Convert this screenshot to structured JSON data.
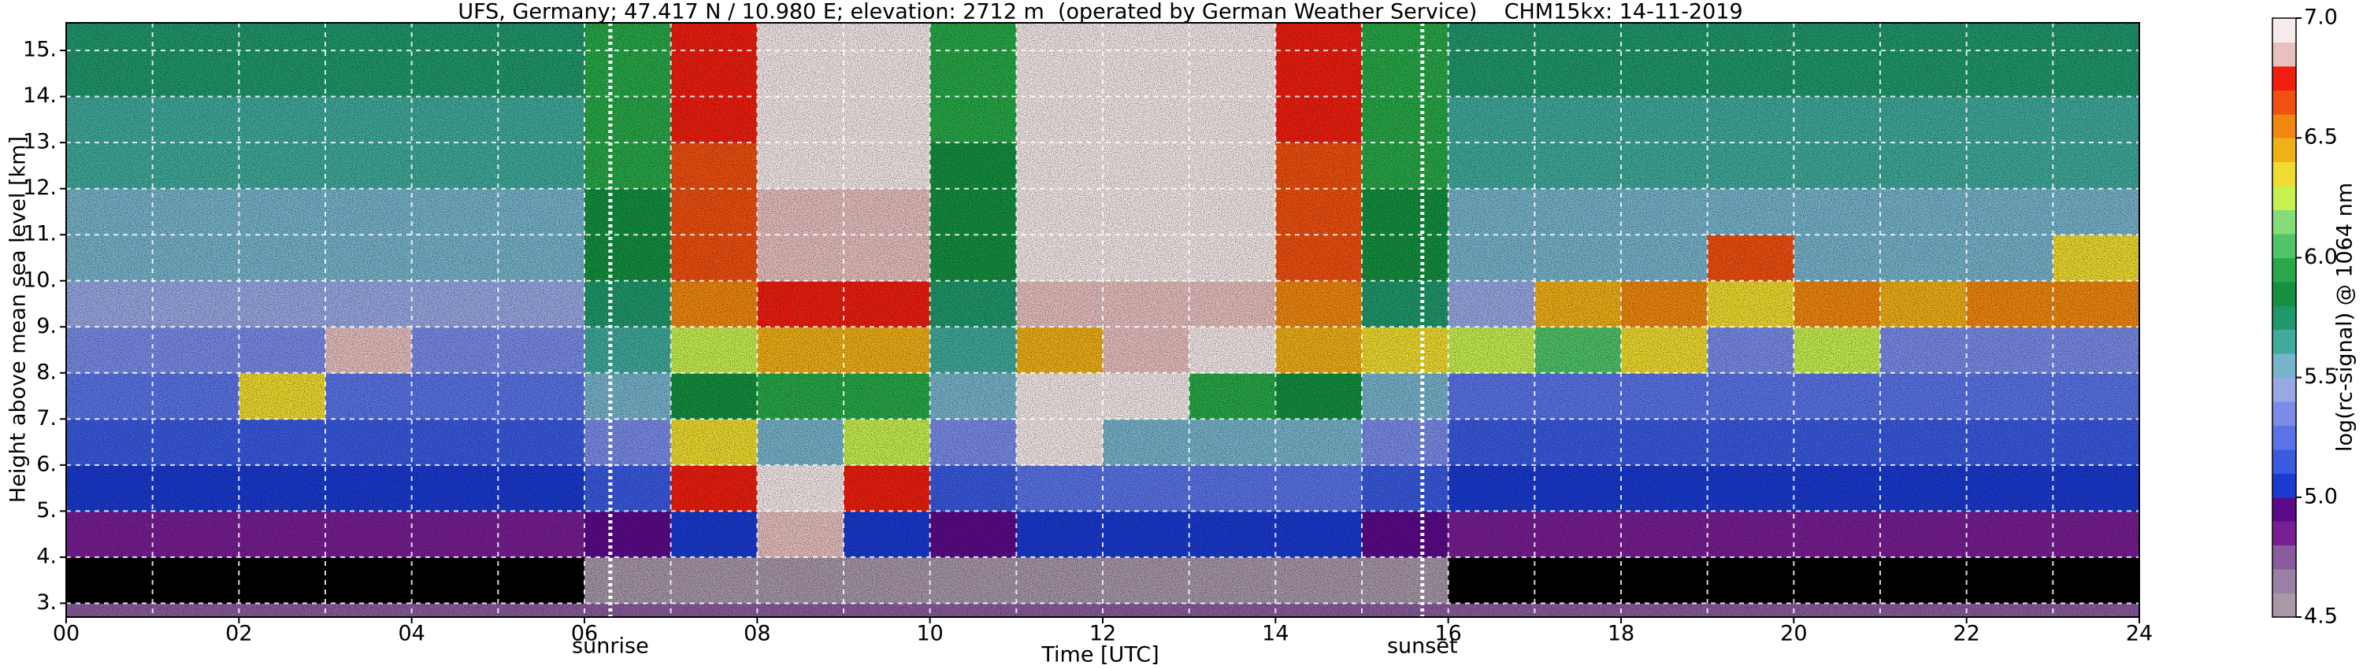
{
  "chart_data": {
    "type": "heatmap",
    "title": "UFS, Germany; 47.417 N / 10.980 E; elevation: 2712 m  (operated by German Weather Service)    CHM15kx: 14-11-2019",
    "x_label": "Time [UTC]",
    "y_label": "Height above mean sea level [km]",
    "colorbar_label": "log(rc-signal) @ 1064 nm",
    "xlim": [
      0,
      24
    ],
    "ylim": [
      2.7,
      15.6
    ],
    "xticks": [
      {
        "value": 0,
        "label": "00"
      },
      {
        "value": 2,
        "label": "02"
      },
      {
        "value": 4,
        "label": "04"
      },
      {
        "value": 6,
        "label": "06"
      },
      {
        "value": 8,
        "label": "08"
      },
      10,
      12,
      14,
      16,
      18,
      20,
      22,
      24
    ],
    "yticks": [
      {
        "value": 3,
        "label": "3."
      },
      {
        "value": 4,
        "label": "4."
      },
      {
        "value": 5,
        "label": "5."
      },
      {
        "value": 6,
        "label": "6."
      },
      {
        "value": 7,
        "label": "7."
      },
      {
        "value": 8,
        "label": "8."
      },
      {
        "value": 9,
        "label": "9."
      },
      {
        "value": 10,
        "label": "10."
      },
      {
        "value": 11,
        "label": "11."
      },
      {
        "value": 12,
        "label": "12."
      },
      {
        "value": 13,
        "label": "13."
      },
      {
        "value": 14,
        "label": "14."
      },
      {
        "value": 15,
        "label": "15."
      }
    ],
    "clim": [
      4.5,
      7.0
    ],
    "cticks": [
      4.5,
      {
        "value": 5.0,
        "label": "5.0"
      },
      5.5,
      {
        "value": 6.0,
        "label": "6.0"
      },
      6.5,
      {
        "value": 7.0,
        "label": "7.0"
      }
    ],
    "colormap": [
      "#a898a8",
      "#9a80a4",
      "#8a5c9e",
      "#781e94",
      "#5c0a8a",
      "#1a3ad0",
      "#3a5ae0",
      "#5a74e8",
      "#7a8ce8",
      "#98a8e4",
      "#78b4cc",
      "#40aa9c",
      "#20986c",
      "#149040",
      "#28a848",
      "#50c468",
      "#88dc78",
      "#c8f050",
      "#f0dc30",
      "#f0b018",
      "#f08810",
      "#f05010",
      "#f01e10",
      "#e8c0c0",
      "#f6eaea"
    ],
    "under_color": "#000000",
    "grid": true,
    "x_edges": [
      0,
      1,
      2,
      3,
      4,
      5,
      6,
      7,
      8,
      9,
      10,
      11,
      12,
      13,
      14,
      15,
      16,
      17,
      18,
      19,
      20,
      21,
      22,
      23,
      24
    ],
    "y_edges": [
      2.7,
      3,
      4,
      5,
      6,
      7,
      8,
      9,
      10,
      11,
      12,
      13,
      14,
      15,
      15.6
    ],
    "z": [
      [
        4.7,
        4.7,
        4.7,
        4.7,
        4.7,
        4.7,
        4.7,
        4.7,
        4.7,
        4.7,
        4.7,
        4.7,
        4.7,
        4.7,
        4.7,
        4.7,
        4.7,
        4.7,
        4.7,
        4.7,
        4.7,
        4.7,
        4.7,
        4.7
      ],
      [
        4.4,
        4.4,
        4.4,
        4.4,
        4.4,
        4.4,
        4.5,
        4.5,
        4.5,
        4.5,
        4.5,
        4.5,
        4.5,
        4.5,
        4.5,
        4.5,
        4.4,
        4.4,
        4.4,
        4.4,
        4.4,
        4.4,
        4.4,
        4.4
      ],
      [
        4.8,
        4.8,
        4.8,
        4.8,
        4.8,
        4.8,
        4.9,
        5.0,
        6.8,
        5.0,
        4.9,
        5.0,
        5.0,
        5.0,
        5.0,
        4.9,
        4.8,
        4.8,
        4.8,
        4.8,
        4.8,
        4.8,
        4.8,
        4.8
      ],
      [
        5.0,
        5.0,
        5.0,
        5.0,
        5.0,
        5.0,
        5.1,
        6.7,
        6.9,
        6.7,
        5.1,
        5.2,
        5.2,
        5.2,
        5.2,
        5.1,
        5.0,
        5.0,
        5.0,
        5.0,
        5.0,
        5.0,
        5.0,
        5.0
      ],
      [
        5.1,
        5.1,
        5.1,
        5.1,
        5.1,
        5.1,
        5.3,
        6.3,
        5.5,
        6.2,
        5.3,
        6.9,
        5.5,
        5.5,
        5.5,
        5.3,
        5.1,
        5.1,
        5.1,
        5.1,
        5.1,
        5.1,
        5.1,
        5.1
      ],
      [
        5.2,
        5.2,
        6.3,
        5.2,
        5.2,
        5.2,
        5.5,
        5.8,
        5.9,
        5.9,
        5.5,
        6.9,
        6.9,
        5.9,
        5.8,
        5.5,
        5.2,
        5.2,
        5.2,
        5.2,
        5.2,
        5.2,
        5.2,
        5.2
      ],
      [
        5.3,
        5.3,
        5.3,
        6.8,
        5.3,
        5.3,
        5.6,
        6.2,
        6.4,
        6.4,
        5.6,
        6.4,
        6.8,
        6.9,
        6.4,
        6.3,
        6.2,
        6.0,
        6.3,
        5.3,
        6.2,
        5.3,
        5.3,
        5.3
      ],
      [
        5.4,
        5.4,
        5.4,
        5.4,
        5.4,
        5.4,
        5.7,
        6.5,
        6.7,
        6.7,
        5.7,
        6.8,
        6.8,
        6.8,
        6.5,
        5.7,
        5.4,
        6.4,
        6.5,
        6.3,
        6.5,
        6.4,
        6.5,
        6.5
      ],
      [
        5.5,
        5.5,
        5.5,
        5.5,
        5.5,
        5.5,
        5.8,
        6.6,
        6.8,
        6.8,
        5.8,
        6.9,
        6.9,
        6.9,
        6.6,
        5.8,
        5.5,
        5.5,
        5.5,
        6.6,
        5.5,
        5.5,
        5.5,
        6.3
      ],
      [
        5.5,
        5.5,
        5.5,
        5.5,
        5.5,
        5.5,
        5.8,
        6.6,
        6.8,
        6.8,
        5.8,
        6.9,
        6.9,
        6.9,
        6.6,
        5.8,
        5.5,
        5.5,
        5.5,
        5.5,
        5.5,
        5.5,
        5.5,
        5.5
      ],
      [
        5.6,
        5.6,
        5.6,
        5.6,
        5.6,
        5.6,
        5.9,
        6.6,
        6.9,
        6.9,
        5.8,
        6.9,
        6.9,
        6.9,
        6.6,
        5.9,
        5.6,
        5.6,
        5.6,
        5.6,
        5.6,
        5.6,
        5.6,
        5.6
      ],
      [
        5.6,
        5.6,
        5.6,
        5.6,
        5.6,
        5.6,
        5.9,
        6.7,
        6.9,
        6.9,
        5.9,
        6.9,
        6.9,
        6.9,
        6.7,
        5.9,
        5.6,
        5.6,
        5.6,
        5.6,
        5.6,
        5.6,
        5.6,
        5.6
      ],
      [
        5.7,
        5.7,
        5.7,
        5.7,
        5.7,
        5.7,
        5.9,
        6.7,
        6.9,
        6.9,
        5.9,
        6.9,
        6.9,
        6.9,
        6.7,
        5.9,
        5.7,
        5.7,
        5.7,
        5.7,
        5.7,
        5.7,
        5.7,
        5.7
      ],
      [
        5.7,
        5.7,
        5.7,
        5.7,
        5.7,
        5.7,
        5.9,
        6.7,
        6.9,
        6.9,
        5.9,
        6.9,
        6.9,
        6.9,
        6.7,
        5.9,
        5.7,
        5.7,
        5.7,
        5.7,
        5.7,
        5.7,
        5.7,
        5.7
      ]
    ],
    "annotations": [
      {
        "x": 6.3,
        "label": "sunrise"
      },
      {
        "x": 15.7,
        "label": "sunset"
      }
    ]
  }
}
